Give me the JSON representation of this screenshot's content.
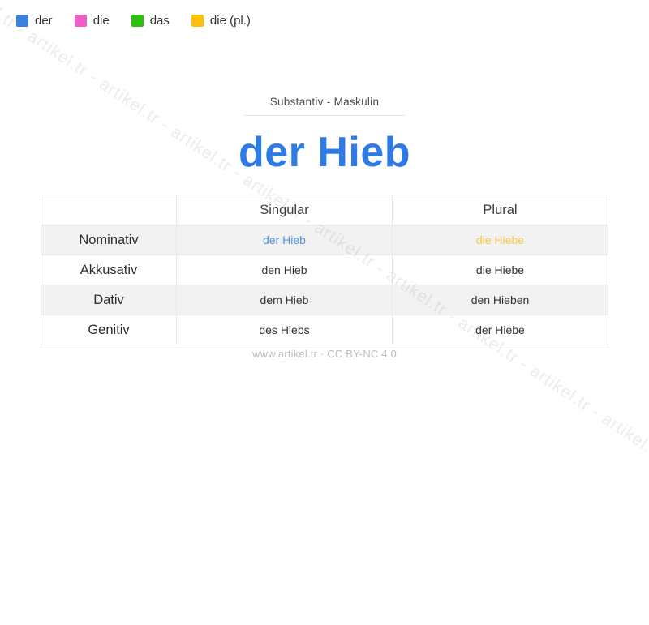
{
  "page": {
    "watermark_text": "artikel.tr - artikel.tr - artikel.tr - artikel.tr - artikel.tr - artikel.tr - artikel.tr - artikel.tr - artikel.tr - artikel.tr - artikel.tr - artikel.tr",
    "footer_text": "www.artikel.tr · CC BY-NC 4.0"
  },
  "legend": {
    "items": [
      {
        "label": "der",
        "color": "#3c82dd"
      },
      {
        "label": "die",
        "color": "#ec5fc4"
      },
      {
        "label": "das",
        "color": "#2ebf10"
      },
      {
        "label": "die (pl.)",
        "color": "#fdc10d"
      }
    ]
  },
  "header": {
    "subtitle": "Substantiv  -  Maskulin",
    "title": "der Hieb",
    "title_color": "#2e7be6"
  },
  "table": {
    "col_headers": [
      "",
      "Singular",
      "Plural"
    ],
    "rows": [
      {
        "case": "Nominativ",
        "singular": "der Hieb",
        "plural": "die Hiebe",
        "singular_color": "#4e94ea",
        "plural_color": "#fbc844",
        "shaded": true
      },
      {
        "case": "Akkusativ",
        "singular": "den Hieb",
        "plural": "die Hiebe",
        "shaded": false
      },
      {
        "case": "Dativ",
        "singular": "dem Hieb",
        "plural": "den Hieben",
        "shaded": true
      },
      {
        "case": "Genitiv",
        "singular": "des Hiebs",
        "plural": "der Hiebe",
        "shaded": false
      }
    ]
  }
}
